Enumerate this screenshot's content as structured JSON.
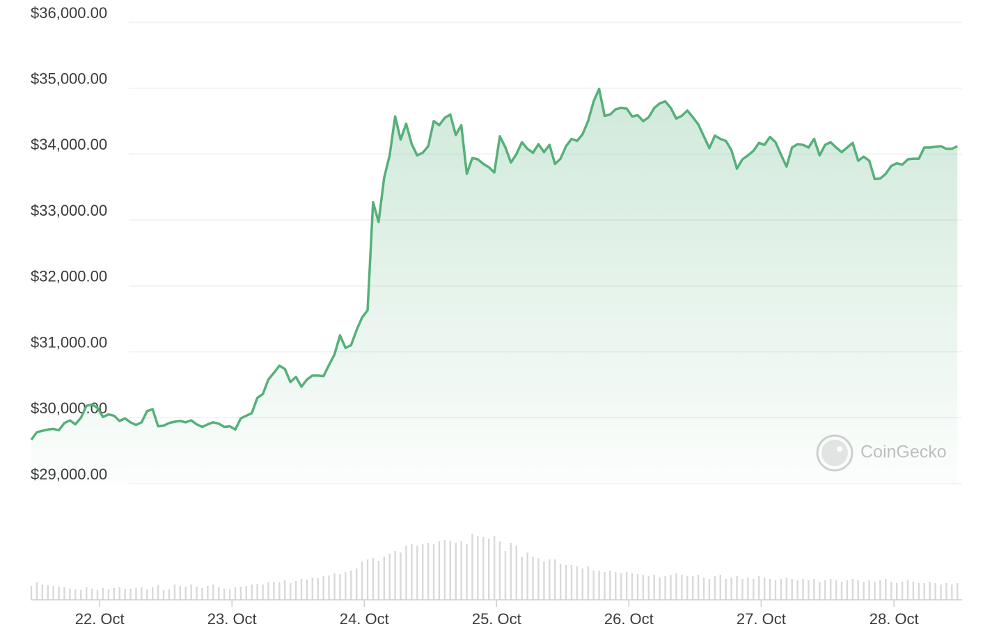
{
  "chart_data": {
    "type": "line",
    "color": "#55b07a",
    "watermark": "CoinGecko",
    "ylim": [
      29000,
      36000
    ],
    "yticks": [
      {
        "value": 29000,
        "label": "$29,000.00"
      },
      {
        "value": 30000,
        "label": "$30,000.00"
      },
      {
        "value": 31000,
        "label": "$31,000.00"
      },
      {
        "value": 32000,
        "label": "$32,000.00"
      },
      {
        "value": 33000,
        "label": "$33,000.00"
      },
      {
        "value": 34000,
        "label": "$34,000.00"
      },
      {
        "value": 35000,
        "label": "$35,000.00"
      },
      {
        "value": 36000,
        "label": "$36,000.00"
      }
    ],
    "grid": true,
    "xlim": [
      0,
      168.6
    ],
    "xticks": [
      {
        "value": 12.4,
        "label": "22. Oct"
      },
      {
        "value": 36.4,
        "label": "23. Oct"
      },
      {
        "value": 60.4,
        "label": "24. Oct"
      },
      {
        "value": 84.4,
        "label": "25. Oct"
      },
      {
        "value": 108.4,
        "label": "26. Oct"
      },
      {
        "value": 132.4,
        "label": "27. Oct"
      },
      {
        "value": 156.5,
        "label": "28. Oct"
      }
    ],
    "values": [
      29665,
      29780,
      29800,
      29820,
      29830,
      29810,
      29920,
      29960,
      29900,
      30000,
      30180,
      30200,
      30150,
      30010,
      30050,
      30030,
      29950,
      29990,
      29930,
      29890,
      29930,
      30100,
      30130,
      29870,
      29880,
      29920,
      29940,
      29950,
      29930,
      29960,
      29900,
      29860,
      29900,
      29930,
      29910,
      29860,
      29870,
      29820,
      29990,
      30030,
      30070,
      30300,
      30360,
      30580,
      30680,
      30790,
      30740,
      30540,
      30620,
      30470,
      30580,
      30640,
      30640,
      30630,
      30800,
      30960,
      31250,
      31060,
      31100,
      31330,
      31520,
      31630,
      33270,
      32970,
      33640,
      33980,
      34570,
      34220,
      34460,
      34150,
      33980,
      34020,
      34120,
      34500,
      34440,
      34550,
      34600,
      34290,
      34440,
      33700,
      33940,
      33920,
      33850,
      33800,
      33720,
      34270,
      34100,
      33870,
      34000,
      34180,
      34080,
      34020,
      34150,
      34030,
      34140,
      33850,
      33930,
      34120,
      34230,
      34200,
      34300,
      34500,
      34800,
      34990,
      34580,
      34600,
      34680,
      34700,
      34690,
      34570,
      34590,
      34500,
      34560,
      34700,
      34770,
      34800,
      34700,
      34540,
      34580,
      34660,
      34560,
      34450,
      34270,
      34090,
      34280,
      34230,
      34200,
      34060,
      33780,
      33920,
      33980,
      34050,
      34170,
      34140,
      34260,
      34180,
      33990,
      33810,
      34100,
      34150,
      34140,
      34100,
      34230,
      33980,
      34140,
      34180,
      34100,
      34030,
      34100,
      34170,
      33900,
      33960,
      33900,
      33620,
      33630,
      33700,
      33820,
      33860,
      33840,
      33920,
      33930,
      33930,
      34100,
      34100,
      34110,
      34120,
      34080,
      34080,
      34120
    ],
    "volume": {
      "color": "#d9d9d9",
      "ylim": [
        0,
        100
      ],
      "values": [
        20,
        25,
        22,
        21,
        20,
        19,
        18,
        16,
        15,
        14,
        18,
        16,
        14,
        17,
        15,
        17,
        18,
        16,
        16,
        17,
        18,
        15,
        18,
        21,
        14,
        15,
        22,
        20,
        19,
        22,
        19,
        17,
        20,
        22,
        18,
        16,
        15,
        18,
        19,
        20,
        22,
        23,
        22,
        25,
        26,
        25,
        28,
        24,
        27,
        30,
        29,
        32,
        31,
        34,
        35,
        38,
        37,
        40,
        42,
        45,
        55,
        58,
        60,
        56,
        62,
        66,
        70,
        68,
        78,
        80,
        78,
        80,
        82,
        80,
        84,
        86,
        85,
        82,
        84,
        80,
        95,
        92,
        90,
        88,
        92,
        84,
        70,
        82,
        78,
        62,
        68,
        62,
        60,
        55,
        58,
        58,
        52,
        50,
        50,
        48,
        45,
        48,
        42,
        42,
        40,
        42,
        40,
        38,
        40,
        38,
        37,
        36,
        34,
        36,
        32,
        34,
        36,
        38,
        36,
        34,
        34,
        36,
        32,
        30,
        34,
        36,
        30,
        32,
        34,
        30,
        32,
        30,
        34,
        32,
        30,
        28,
        30,
        32,
        30,
        28,
        30,
        28,
        30,
        26,
        28,
        30,
        28,
        26,
        28,
        30,
        28,
        26,
        28,
        26,
        28,
        30,
        26,
        24,
        26,
        28,
        26,
        24,
        24,
        26,
        24,
        22,
        24,
        22,
        24
      ]
    }
  }
}
